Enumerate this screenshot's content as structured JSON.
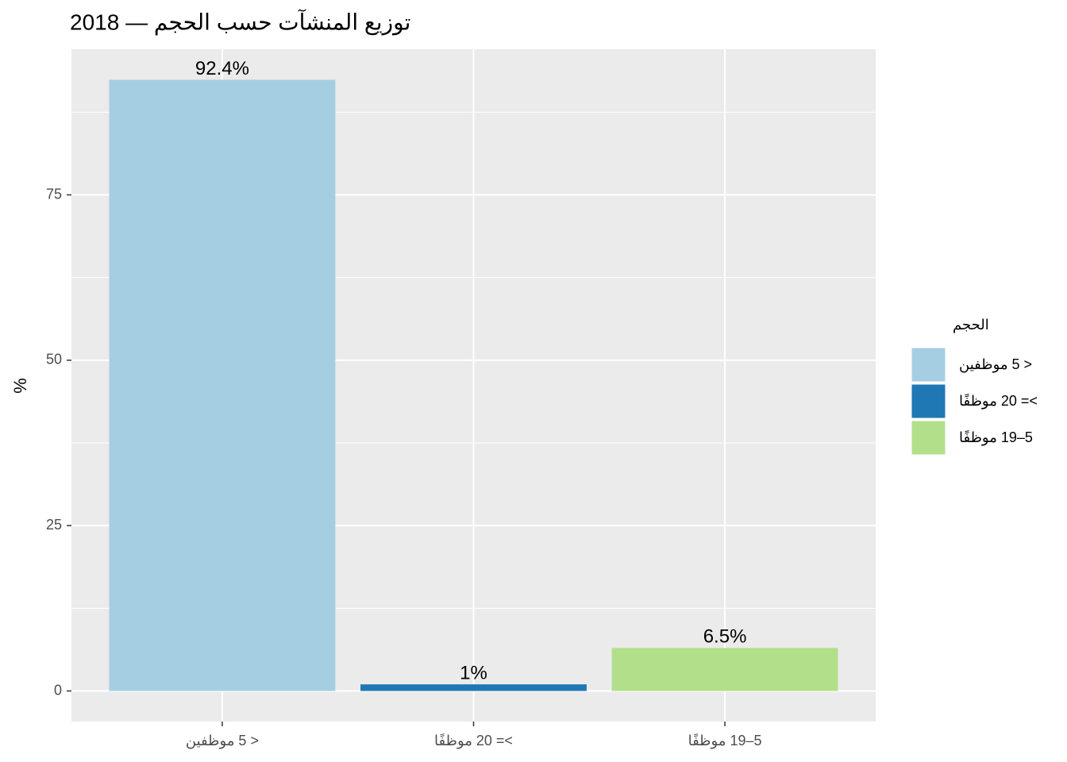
{
  "chart_data": {
    "type": "bar",
    "title": "توزيع المنشآت حسب الحجم — 2018",
    "y_label": "%",
    "legend_title": "الحجم",
    "categories": [
      "< 5 موظفين",
      ">= 20 موظفًا",
      "5–19 موظفًا"
    ],
    "values": [
      92.4,
      1,
      6.5
    ],
    "value_labels": [
      "92.4%",
      "1%",
      "6.5%"
    ],
    "colors": [
      "#a6cee3",
      "#1f78b4",
      "#b2df8a"
    ],
    "ylim": [
      -4.62,
      97.02
    ],
    "yticks": [
      0,
      25,
      50,
      75
    ],
    "grid": true,
    "minor_grid": true,
    "legend": "right"
  }
}
